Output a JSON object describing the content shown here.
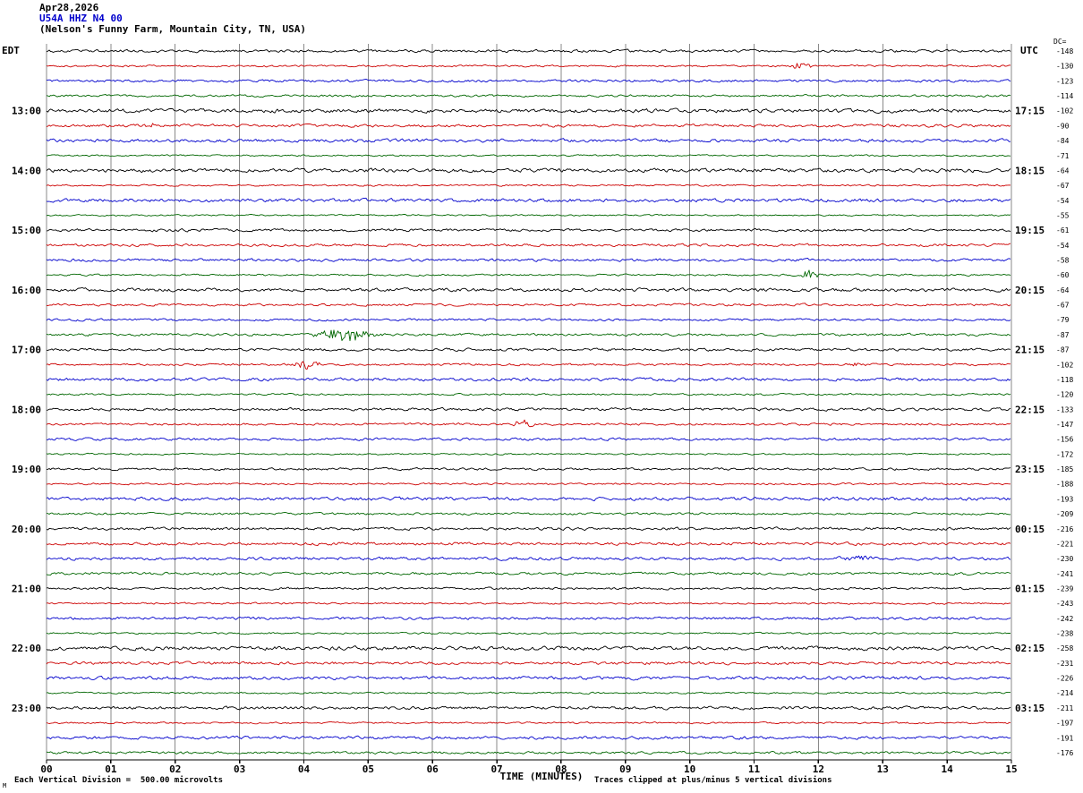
{
  "title": {
    "date": "Apr28,2026",
    "station_line": "U54A HHZ N4 00",
    "location_line": "(Nelson's Funny Farm, Mountain City, TN, USA)"
  },
  "headers": {
    "left": "EDT",
    "right": "UTC",
    "dc": "DC="
  },
  "footer": {
    "x_axis_title": "TIME (MINUTES)",
    "scale_note": "Each Vertical Division =  500.00 microvolts",
    "clip_note": "Traces clipped at plus/minus 5 vertical divisions",
    "corner_mark": "M"
  },
  "chart_data": {
    "type": "line",
    "subtype": "helicorder-seismogram",
    "station": "U54A HHZ N4 00",
    "date": "Apr28,2026",
    "location": "(Nelson's Funny Farm, Mountain City, TN, USA)",
    "x_axis": {
      "label": "TIME (MINUTES)",
      "min": 0,
      "max": 15,
      "tick_labels": [
        "00",
        "01",
        "02",
        "03",
        "04",
        "05",
        "06",
        "07",
        "08",
        "09",
        "10",
        "11",
        "12",
        "13",
        "14",
        "15"
      ]
    },
    "trace_count": 48,
    "minutes_per_trace": 15,
    "trace_color_cycle": [
      "#000000",
      "#cc0000",
      "#0000cc",
      "#006600"
    ],
    "grid_color": "#8a8a8a",
    "axis_color": "#000000",
    "clip_divisions": 5,
    "microvolts_per_division": 500.0,
    "left_time_labels": [
      {
        "row": 4,
        "text": "13:00"
      },
      {
        "row": 8,
        "text": "14:00"
      },
      {
        "row": 12,
        "text": "15:00"
      },
      {
        "row": 16,
        "text": "16:00"
      },
      {
        "row": 20,
        "text": "17:00"
      },
      {
        "row": 24,
        "text": "18:00"
      },
      {
        "row": 28,
        "text": "19:00"
      },
      {
        "row": 32,
        "text": "20:00"
      },
      {
        "row": 36,
        "text": "21:00"
      },
      {
        "row": 40,
        "text": "22:00"
      },
      {
        "row": 44,
        "text": "23:00"
      }
    ],
    "right_time_labels": [
      {
        "row": 4,
        "text": "17:15"
      },
      {
        "row": 8,
        "text": "18:15"
      },
      {
        "row": 12,
        "text": "19:15"
      },
      {
        "row": 16,
        "text": "20:15"
      },
      {
        "row": 20,
        "text": "21:15"
      },
      {
        "row": 24,
        "text": "22:15"
      },
      {
        "row": 28,
        "text": "23:15"
      },
      {
        "row": 32,
        "text": "00:15"
      },
      {
        "row": 36,
        "text": "01:15"
      },
      {
        "row": 40,
        "text": "02:15"
      },
      {
        "row": 44,
        "text": "03:15"
      }
    ],
    "dc_offsets": [
      -148,
      -130,
      -123,
      -114,
      -102,
      -90,
      -84,
      -71,
      -64,
      -67,
      -54,
      -55,
      -61,
      -54,
      -58,
      -60,
      -64,
      -67,
      -79,
      -87,
      -87,
      -102,
      -118,
      -120,
      -133,
      -147,
      -156,
      -172,
      -185,
      -188,
      -193,
      -209,
      -216,
      -221,
      -230,
      -241,
      -239,
      -243,
      -242,
      -238,
      -258,
      -231,
      -226,
      -214,
      -211,
      -197,
      -191,
      -176
    ],
    "events": [
      {
        "row": 1,
        "minute_start": 11.55,
        "minute_end": 11.95,
        "amplitude": 3.5
      },
      {
        "row": 5,
        "minute_start": 1.45,
        "minute_end": 1.8,
        "amplitude": 2.0
      },
      {
        "row": 15,
        "minute_start": 11.73,
        "minute_end": 12.05,
        "amplitude": 6.5
      },
      {
        "row": 19,
        "minute_start": 4.05,
        "minute_end": 5.25,
        "amplitude": 6.5
      },
      {
        "row": 21,
        "minute_start": 3.78,
        "minute_end": 4.28,
        "amplitude": 5.0
      },
      {
        "row": 21,
        "minute_start": 12.5,
        "minute_end": 12.8,
        "amplitude": 2.2
      },
      {
        "row": 25,
        "minute_start": 7.18,
        "minute_end": 7.68,
        "amplitude": 4.0
      },
      {
        "row": 34,
        "minute_start": 12.2,
        "minute_end": 13.0,
        "amplitude": 2.2
      }
    ]
  }
}
